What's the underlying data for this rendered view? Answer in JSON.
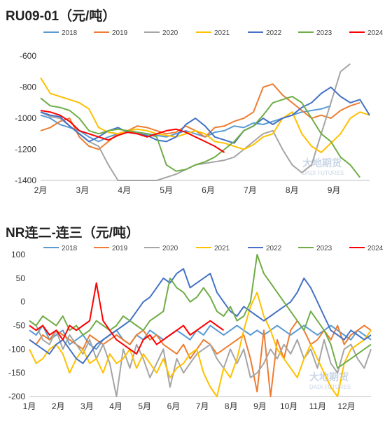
{
  "watermark": {
    "brand": "大地期货",
    "brand_en": "DADI FUTURES"
  },
  "chart_data": [
    {
      "type": "line",
      "title": "RU09-01（元/吨）",
      "xlabel": "",
      "ylabel": "",
      "ylim": [
        -1400,
        -500
      ],
      "yticks": [
        -600,
        -800,
        -1000,
        -1200,
        -1400
      ],
      "xticks": [
        "2月",
        "3月",
        "4月",
        "5月",
        "6月",
        "7月",
        "8月",
        "9月"
      ],
      "x_unit": "week index from early Feb",
      "grid": false,
      "legend_position": "top",
      "series": [
        {
          "name": "2018",
          "color": "#5b9bd5",
          "values": [
            -980,
            -1000,
            -1040,
            -1060,
            -1080,
            -1120,
            -1150,
            -1120,
            -1100,
            -1080,
            -1090,
            -1100,
            -1110,
            -1120,
            -1100,
            -1080,
            -1100,
            -1120,
            -1090,
            -1080,
            -1050,
            -1060,
            -1030,
            -1040,
            -1020,
            -1000,
            -980,
            -960,
            -950,
            -940,
            -920
          ]
        },
        {
          "name": "2019",
          "color": "#ed7d31",
          "values": [
            -1080,
            -1060,
            -1020,
            -1000,
            -1120,
            -1180,
            -1200,
            -1150,
            -1100,
            -1080,
            -1050,
            -1060,
            -1080,
            -1100,
            -1090,
            -1050,
            -1080,
            -1120,
            -1060,
            -1050,
            -1020,
            -1000,
            -960,
            -800,
            -780,
            -850,
            -900,
            -950,
            -1000,
            -980,
            -1000,
            -950,
            -920,
            -900
          ]
        },
        {
          "name": "2020",
          "color": "#a5a5a5",
          "values": [
            -960,
            -990,
            -1000,
            -1050,
            -1100,
            -1150,
            -1180,
            -1300,
            -1400,
            -1420,
            -1420,
            -1420,
            -1420,
            -1380,
            -1360,
            -1330,
            -1300,
            -1290,
            -1280,
            -1270,
            -1250,
            -1200,
            -1150,
            -1100,
            -1080,
            -1200,
            -1300,
            -1350,
            -1300,
            -1100,
            -900,
            -700,
            -650
          ]
        },
        {
          "name": "2021",
          "color": "#ffc000",
          "values": [
            -740,
            -840,
            -860,
            -880,
            -900,
            -940,
            -1060,
            -1090,
            -1100,
            -1080,
            -1070,
            -1080,
            -1100,
            -1110,
            -1120,
            -1100,
            -1080,
            -1100,
            -1150,
            -1160,
            -1180,
            -1200,
            -1170,
            -1120,
            -1100,
            -1000,
            -960,
            -1100,
            -1180,
            -1220,
            -1160,
            -1100,
            -1000,
            -960,
            -980
          ]
        },
        {
          "name": "2022",
          "color": "#4472c4",
          "values": [
            -960,
            -980,
            -990,
            -1050,
            -1100,
            -1150,
            -1120,
            -1080,
            -1060,
            -1090,
            -1100,
            -1110,
            -1140,
            -1150,
            -1120,
            -1040,
            -1000,
            -1050,
            -1120,
            -1140,
            -1160,
            -1080,
            -1050,
            -1000,
            -1040,
            -1000,
            -980,
            -930,
            -900,
            -840,
            -800,
            -860,
            -900,
            -880,
            -980
          ]
        },
        {
          "name": "2023",
          "color": "#70ad47",
          "values": [
            -870,
            -920,
            -930,
            -950,
            -1000,
            -1080,
            -1100,
            -1080,
            -1070,
            -1080,
            -1090,
            -1100,
            -1120,
            -1300,
            -1340,
            -1330,
            -1300,
            -1280,
            -1250,
            -1200,
            -1150,
            -1080,
            -1050,
            -980,
            -900,
            -880,
            -860,
            -900,
            -1000,
            -1100,
            -1150,
            -1250,
            -1300,
            -1380
          ]
        },
        {
          "name": "2024",
          "color": "#ff0000",
          "values": [
            -950,
            -960,
            -980,
            -1020,
            -1080,
            -1100,
            -1120,
            -1140,
            -1110,
            -1090,
            -1100,
            -1120,
            -1100,
            -1080,
            -1070,
            -1090,
            -1120,
            -1150,
            -1180,
            -1220
          ]
        }
      ]
    },
    {
      "type": "line",
      "title": "NR连二-连三（元/吨）",
      "xlabel": "",
      "ylabel": "",
      "ylim": [
        -200,
        100
      ],
      "yticks": [
        100,
        50,
        0,
        -50,
        -100,
        -150,
        -200
      ],
      "xticks": [
        "1月",
        "2月",
        "3月",
        "4月",
        "5月",
        "6月",
        "7月",
        "8月",
        "9月",
        "10月",
        "11月",
        "12月"
      ],
      "x_unit": "week index from early Jan",
      "grid": false,
      "legend_position": "top",
      "series": [
        {
          "name": "2018",
          "color": "#5b9bd5",
          "values": [
            -60,
            -70,
            -50,
            -80,
            -70,
            -60,
            -90,
            -80,
            -70,
            -90,
            -100,
            -80,
            -70,
            -60,
            -80,
            -90,
            -70,
            -80,
            -60,
            -70,
            -80,
            -70,
            -60,
            -70,
            -80,
            -60,
            -70,
            -50,
            -60,
            -70,
            -60,
            -50,
            -60,
            -70,
            -60,
            -70,
            -60,
            -50,
            -60,
            -70,
            -60,
            -50,
            -60,
            -70,
            -60,
            -50,
            -60,
            -70,
            -80,
            -60,
            -70,
            -80
          ]
        },
        {
          "name": "2019",
          "color": "#ed7d31",
          "values": [
            -80,
            -90,
            -70,
            -80,
            -60,
            -70,
            -80,
            -90,
            -100,
            -70,
            -80,
            -90,
            -80,
            -70,
            -80,
            -90,
            -70,
            -60,
            -80,
            -70,
            -90,
            -100,
            -110,
            -90,
            -120,
            -100,
            -80,
            -90,
            -110,
            -100,
            -90,
            -80,
            -70,
            -120,
            -190,
            -60,
            -200,
            -80,
            -120,
            -60,
            -40,
            -60,
            -90,
            -80,
            -60,
            -80,
            -50,
            -90,
            -70,
            -60,
            -50,
            -60
          ]
        },
        {
          "name": "2020",
          "color": "#a5a5a5",
          "values": [
            -40,
            -50,
            -80,
            -90,
            -60,
            -100,
            -70,
            -90,
            -110,
            -80,
            -120,
            -90,
            -130,
            -200,
            -100,
            -140,
            -90,
            -120,
            -160,
            -130,
            -100,
            -180,
            -120,
            -150,
            -130,
            -110,
            -100,
            -90,
            -120,
            -140,
            -100,
            -130,
            -100,
            -160,
            -150,
            -130,
            -100,
            -120,
            -90,
            -110,
            -80,
            -120,
            -100,
            -140,
            -80,
            -130,
            -150,
            -100,
            -90,
            -120,
            -140,
            -100
          ]
        },
        {
          "name": "2021",
          "color": "#ffc000",
          "values": [
            -100,
            -130,
            -120,
            -100,
            -90,
            -110,
            -150,
            -120,
            -100,
            -130,
            -120,
            -150,
            -110,
            -130,
            -120,
            -100,
            -140,
            -110,
            -130,
            -150,
            -120,
            -160,
            -140,
            -130,
            -110,
            -100,
            -150,
            -180,
            -200,
            -140,
            -160,
            -120,
            -60,
            -10,
            20,
            -30,
            -60,
            -100,
            -120,
            -140,
            -160,
            -120,
            -90,
            -120,
            -150,
            -180,
            -200,
            -130,
            -100,
            -90,
            -80,
            -60
          ]
        },
        {
          "name": "2022",
          "color": "#4472c4",
          "values": [
            -80,
            -90,
            -100,
            -110,
            -90,
            -80,
            -100,
            -120,
            -130,
            -110,
            -90,
            -80,
            -70,
            -60,
            -50,
            -40,
            -20,
            0,
            10,
            30,
            50,
            40,
            60,
            70,
            30,
            40,
            50,
            60,
            20,
            0,
            -20,
            -30,
            -10,
            -20,
            -30,
            -40,
            -30,
            -20,
            -10,
            0,
            20,
            50,
            30,
            0,
            -30,
            -60,
            -70,
            -80,
            -60,
            -70,
            -80,
            -70
          ]
        },
        {
          "name": "2023",
          "color": "#70ad47",
          "values": [
            -40,
            -50,
            -30,
            -40,
            -50,
            -30,
            -60,
            -50,
            -70,
            -60,
            -40,
            -50,
            -60,
            -50,
            -30,
            -40,
            -50,
            -60,
            -40,
            -30,
            -20,
            50,
            30,
            20,
            0,
            10,
            30,
            10,
            -20,
            -30,
            -10,
            -40,
            -30,
            0,
            100,
            60,
            40,
            20,
            0,
            -20,
            -40,
            -60,
            -20,
            -40,
            -60,
            -90,
            -140,
            -130,
            -120,
            -110,
            -100,
            -90
          ]
        },
        {
          "name": "2024",
          "color": "#ff0000",
          "values": [
            -50,
            -60,
            -50,
            -70,
            -60,
            -80,
            -50,
            -60,
            -50,
            -40,
            40,
            -40,
            -60,
            -80,
            -90,
            -100,
            -110,
            -80,
            -70,
            -90,
            -80,
            -70,
            -60,
            -50,
            -70,
            -60,
            -50,
            -40,
            -50,
            -60
          ]
        }
      ]
    }
  ]
}
